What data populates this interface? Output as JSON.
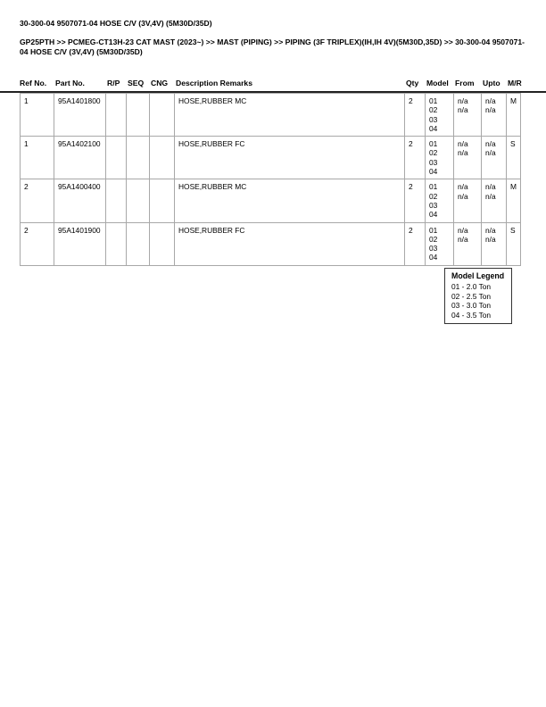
{
  "title": "30-300-04 9507071-04 HOSE C/V (3V,4V) (5M30D/35D)",
  "breadcrumb": "GP25PTH >> PCMEG-CT13H-23 CAT MAST (2023~) >> MAST (PIPING) >> PIPING (3F TRIPLEX)(IH,IH 4V)(5M30D,35D) >> 30-300-04 9507071-04 HOSE C/V (3V,4V) (5M30D/35D)",
  "columns": [
    "Ref No.",
    "Part No.",
    "R/P",
    "SEQ",
    "CNG",
    "Description Remarks",
    "Qty",
    "Model",
    "From",
    "Upto",
    "M/R"
  ],
  "rows": [
    {
      "ref": "1",
      "part": "95A1401800",
      "rp": "",
      "seq": "",
      "cng": "",
      "desc": "HOSE,RUBBER MC",
      "qty": "2",
      "models": [
        "01",
        "02",
        "03",
        "04"
      ],
      "from": [
        "n/a",
        "n/a"
      ],
      "upto": [
        "n/a",
        "n/a"
      ],
      "mr": "M"
    },
    {
      "ref": "1",
      "part": "95A1402100",
      "rp": "",
      "seq": "",
      "cng": "",
      "desc": "HOSE,RUBBER FC",
      "qty": "2",
      "models": [
        "01",
        "02",
        "03",
        "04"
      ],
      "from": [
        "n/a",
        "n/a"
      ],
      "upto": [
        "n/a",
        "n/a"
      ],
      "mr": "S"
    },
    {
      "ref": "2",
      "part": "95A1400400",
      "rp": "",
      "seq": "",
      "cng": "",
      "desc": "HOSE,RUBBER MC",
      "qty": "2",
      "models": [
        "01",
        "02",
        "03",
        "04"
      ],
      "from": [
        "n/a",
        "n/a"
      ],
      "upto": [
        "n/a",
        "n/a"
      ],
      "mr": "M"
    },
    {
      "ref": "2",
      "part": "95A1401900",
      "rp": "",
      "seq": "",
      "cng": "",
      "desc": "HOSE,RUBBER FC",
      "qty": "2",
      "models": [
        "01",
        "02",
        "03",
        "04"
      ],
      "from": [
        "n/a",
        "n/a"
      ],
      "upto": [
        "n/a",
        "n/a"
      ],
      "mr": "S"
    }
  ],
  "legend": {
    "title": "Model Legend",
    "items": [
      "01 - 2.0 Ton",
      "02 - 2.5 Ton",
      "03 - 3.0 Ton",
      "04 - 3.5 Ton"
    ]
  }
}
